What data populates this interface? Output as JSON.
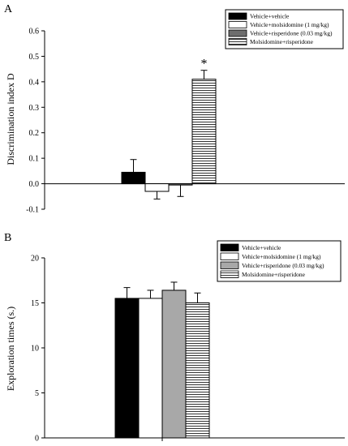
{
  "chart_data": [
    {
      "type": "bar",
      "panel_label": "A",
      "ylabel": "Discrimination index D",
      "ylim": [
        -0.1,
        0.6
      ],
      "yticks": [
        "-0.1",
        "0.0",
        "0.1",
        "0.2",
        "0.3",
        "0.4",
        "0.5",
        "0.6"
      ],
      "ytick_values": [
        -0.1,
        0.0,
        0.1,
        0.2,
        0.3,
        0.4,
        0.5,
        0.6
      ],
      "legend_position": "top-right",
      "series": [
        {
          "name": "Vehicle+vehicle",
          "value": 0.045,
          "error": 0.05,
          "fill": "solid",
          "color": "#000000"
        },
        {
          "name": "Vehicle+molsidomine (1 mg/kg)",
          "value": -0.03,
          "error": 0.03,
          "fill": "white",
          "color": "#ffffff"
        },
        {
          "name": "Vehicle+risperidone (0.03 mg/kg)",
          "value": -0.005,
          "error": 0.045,
          "fill": "gray",
          "color": "#6e6e6e"
        },
        {
          "name": "Molsidomine+risperidone",
          "value": 0.41,
          "error": 0.035,
          "fill": "hlines",
          "color": "#ffffff"
        }
      ],
      "annotations": [
        {
          "text": "*",
          "series_index": 3
        }
      ]
    },
    {
      "type": "bar",
      "panel_label": "B",
      "ylabel": "Exploration times (s.)",
      "ylim": [
        0,
        20
      ],
      "yticks": [
        "0",
        "5",
        "10",
        "15",
        "20"
      ],
      "ytick_values": [
        0,
        5,
        10,
        15,
        20
      ],
      "legend_position": "top-right",
      "series": [
        {
          "name": "Vehicle+vehicle",
          "value": 15.5,
          "error": 1.2,
          "fill": "solid",
          "color": "#000000"
        },
        {
          "name": "Vehicle+molsidomine (1 mg/kg)",
          "value": 15.5,
          "error": 0.9,
          "fill": "white",
          "color": "#ffffff"
        },
        {
          "name": "Vehicle+risperidone (0.03 mg/kg)",
          "value": 16.4,
          "error": 0.9,
          "fill": "gray",
          "color": "#a8a8a8"
        },
        {
          "name": "Molsidomine+risperidone",
          "value": 15.0,
          "error": 1.1,
          "fill": "hlines",
          "color": "#ffffff"
        }
      ],
      "annotations": []
    }
  ]
}
